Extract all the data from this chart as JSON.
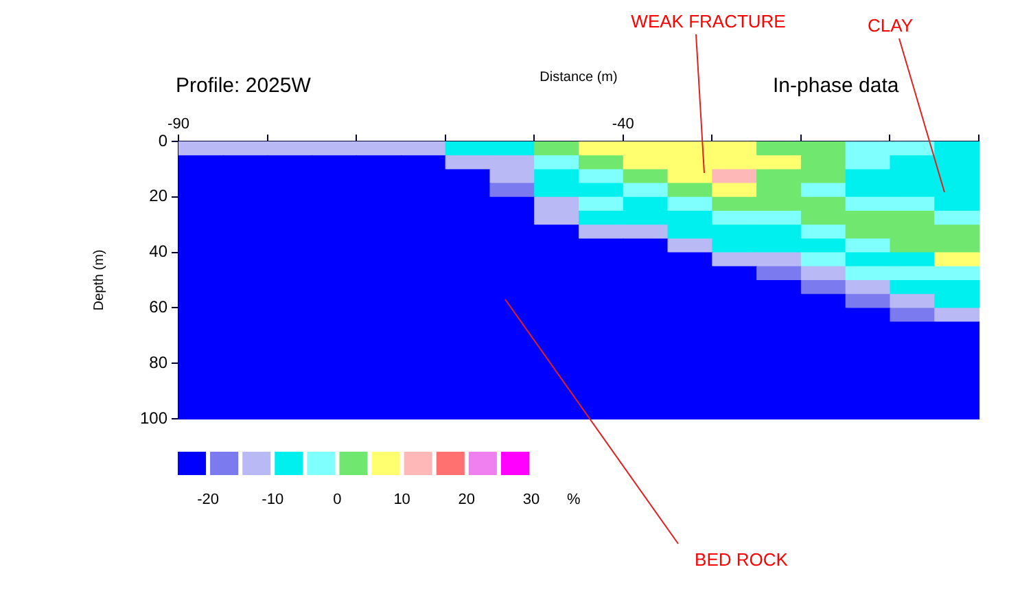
{
  "chart_data": {
    "type": "heatmap",
    "title": "Profile: 2025W",
    "subtitle": "In-phase data",
    "xlabel": "Distance (m)",
    "ylabel": "Depth (m)",
    "clabel": "%",
    "x": [
      -87.5,
      -82.5,
      -77.5,
      -72.5,
      -67.5,
      -62.5,
      -57.5,
      -52.5,
      -47.5,
      -42.5,
      -37.5,
      -32.5,
      -27.5,
      -22.5,
      -17.5,
      -12.5,
      -7.5,
      -2.5
    ],
    "xlim": [
      -90,
      0
    ],
    "xticks": [
      -90,
      {
        "value": -80,
        "label": null
      },
      {
        "value": -70,
        "label": null
      },
      {
        "value": -60,
        "label": null
      },
      {
        "value": -50,
        "label": null
      },
      -40,
      {
        "value": -30,
        "label": null
      },
      {
        "value": -20,
        "label": null
      },
      {
        "value": -10,
        "label": null
      },
      {
        "value": 0,
        "label": null
      }
    ],
    "ylim": [
      100,
      0
    ],
    "yticks": [
      0,
      20,
      40,
      60,
      80,
      100
    ],
    "clim": [
      -25,
      30
    ],
    "cticks": [
      -20,
      -10,
      0,
      10,
      20,
      30
    ],
    "colors": [
      "#0000ff",
      "#7b7bef",
      "#b9b9f5",
      "#00f0f0",
      "#80ffff",
      "#70e870",
      "#ffff70",
      "#ffb8b8",
      "#ff7070",
      "#f080f0",
      "#ff00ff"
    ],
    "cells": [
      [
        -12.5,
        -12.5,
        -12.5,
        -12.5,
        -12.5,
        -12.5,
        -7.5,
        -7.5,
        2.5,
        7.5,
        7.5,
        7.5,
        7.5,
        2.5,
        2.5,
        -2.5,
        -2.5,
        -7.5
      ],
      [
        -22.5,
        -22.5,
        -22.5,
        -22.5,
        -22.5,
        -22.5,
        -12.5,
        -12.5,
        -2.5,
        2.5,
        7.5,
        7.5,
        7.5,
        7.5,
        2.5,
        -2.5,
        -7.5,
        -7.5
      ],
      [
        -22.5,
        -22.5,
        -22.5,
        -22.5,
        -22.5,
        -22.5,
        -22.5,
        -12.5,
        -7.5,
        -2.5,
        2.5,
        7.5,
        12.5,
        2.5,
        2.5,
        -7.5,
        -7.5,
        -7.5
      ],
      [
        -22.5,
        -22.5,
        -22.5,
        -22.5,
        -22.5,
        -22.5,
        -22.5,
        -17.5,
        -7.5,
        -7.5,
        -2.5,
        2.5,
        7.5,
        2.5,
        -2.5,
        -7.5,
        -7.5,
        -7.5
      ],
      [
        -22.5,
        -22.5,
        -22.5,
        -22.5,
        -22.5,
        -22.5,
        -22.5,
        -22.5,
        -12.5,
        -2.5,
        -7.5,
        -2.5,
        2.5,
        2.5,
        2.5,
        -2.5,
        -2.5,
        -7.5
      ],
      [
        -22.5,
        -22.5,
        -22.5,
        -22.5,
        -22.5,
        -22.5,
        -22.5,
        -22.5,
        -12.5,
        -7.5,
        -7.5,
        -7.5,
        -2.5,
        -2.5,
        2.5,
        2.5,
        2.5,
        -2.5
      ],
      [
        -22.5,
        -22.5,
        -22.5,
        -22.5,
        -22.5,
        -22.5,
        -22.5,
        -22.5,
        -22.5,
        -12.5,
        -12.5,
        -7.5,
        -7.5,
        -7.5,
        -2.5,
        2.5,
        2.5,
        2.5
      ],
      [
        -22.5,
        -22.5,
        -22.5,
        -22.5,
        -22.5,
        -22.5,
        -22.5,
        -22.5,
        -22.5,
        -22.5,
        -22.5,
        -12.5,
        -7.5,
        -7.5,
        -7.5,
        -2.5,
        2.5,
        2.5
      ],
      [
        -22.5,
        -22.5,
        -22.5,
        -22.5,
        -22.5,
        -22.5,
        -22.5,
        -22.5,
        -22.5,
        -22.5,
        -22.5,
        -22.5,
        -12.5,
        -12.5,
        -2.5,
        -7.5,
        -7.5,
        7.5
      ],
      [
        -22.5,
        -22.5,
        -22.5,
        -22.5,
        -22.5,
        -22.5,
        -22.5,
        -22.5,
        -22.5,
        -22.5,
        -22.5,
        -22.5,
        -22.5,
        -17.5,
        -12.5,
        -2.5,
        -2.5,
        -2.5
      ],
      [
        -22.5,
        -22.5,
        -22.5,
        -22.5,
        -22.5,
        -22.5,
        -22.5,
        -22.5,
        -22.5,
        -22.5,
        -22.5,
        -22.5,
        -22.5,
        -22.5,
        -17.5,
        -12.5,
        -7.5,
        -7.5
      ],
      [
        -22.5,
        -22.5,
        -22.5,
        -22.5,
        -22.5,
        -22.5,
        -22.5,
        -22.5,
        -22.5,
        -22.5,
        -22.5,
        -22.5,
        -22.5,
        -22.5,
        -22.5,
        -17.5,
        -12.5,
        -7.5
      ],
      [
        -22.5,
        -22.5,
        -22.5,
        -22.5,
        -22.5,
        -22.5,
        -22.5,
        -22.5,
        -22.5,
        -22.5,
        -22.5,
        -22.5,
        -22.5,
        -22.5,
        -22.5,
        -22.5,
        -17.5,
        -12.5
      ],
      [
        -22.5,
        -22.5,
        -22.5,
        -22.5,
        -22.5,
        -22.5,
        -22.5,
        -22.5,
        -22.5,
        -22.5,
        -22.5,
        -22.5,
        -22.5,
        -22.5,
        -22.5,
        -22.5,
        -22.5,
        -22.5
      ],
      [
        -22.5,
        -22.5,
        -22.5,
        -22.5,
        -22.5,
        -22.5,
        -22.5,
        -22.5,
        -22.5,
        -22.5,
        -22.5,
        -22.5,
        -22.5,
        -22.5,
        -22.5,
        -22.5,
        -22.5,
        -22.5
      ],
      [
        -22.5,
        -22.5,
        -22.5,
        -22.5,
        -22.5,
        -22.5,
        -22.5,
        -22.5,
        -22.5,
        -22.5,
        -22.5,
        -22.5,
        -22.5,
        -22.5,
        -22.5,
        -22.5,
        -22.5,
        -22.5
      ],
      [
        -22.5,
        -22.5,
        -22.5,
        -22.5,
        -22.5,
        -22.5,
        -22.5,
        -22.5,
        -22.5,
        -22.5,
        -22.5,
        -22.5,
        -22.5,
        -22.5,
        -22.5,
        -22.5,
        -22.5,
        -22.5
      ],
      [
        -22.5,
        -22.5,
        -22.5,
        -22.5,
        -22.5,
        -22.5,
        -22.5,
        -22.5,
        -22.5,
        -22.5,
        -22.5,
        -22.5,
        -22.5,
        -22.5,
        -22.5,
        -22.5,
        -22.5,
        -22.5
      ],
      [
        -22.5,
        -22.5,
        -22.5,
        -22.5,
        -22.5,
        -22.5,
        -22.5,
        -22.5,
        -22.5,
        -22.5,
        -22.5,
        -22.5,
        -22.5,
        -22.5,
        -22.5,
        -22.5,
        -22.5,
        -22.5
      ],
      [
        -22.5,
        -22.5,
        -22.5,
        -22.5,
        -22.5,
        -22.5,
        -22.5,
        -22.5,
        -22.5,
        -22.5,
        -22.5,
        -22.5,
        -22.5,
        -22.5,
        -22.5,
        -22.5,
        -22.5,
        -22.5
      ]
    ],
    "annotations": [
      "WEAK FRACTURE",
      "CLAY",
      "BED ROCK"
    ]
  }
}
